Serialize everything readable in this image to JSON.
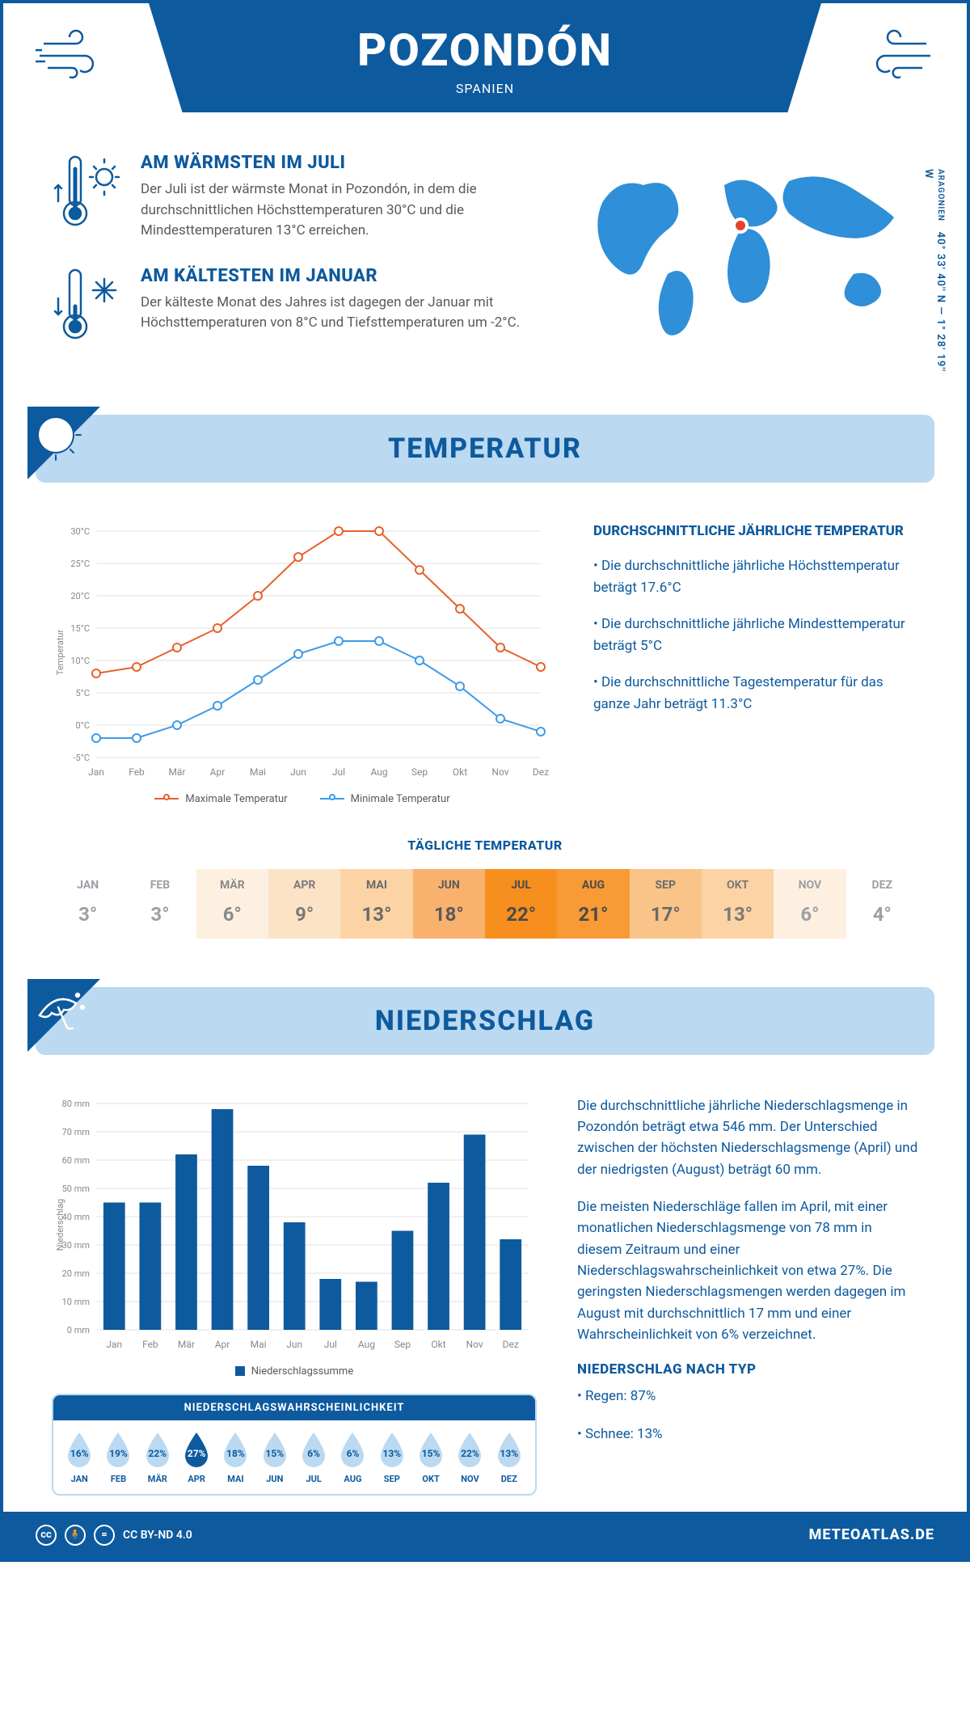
{
  "header": {
    "place": "POZONDÓN",
    "country": "SPANIEN"
  },
  "coords": {
    "region": "ARAGONIEN",
    "lat": "40° 33' 40'' N",
    "lon": "1° 28' 19'' W"
  },
  "warmest": {
    "title": "AM WÄRMSTEN IM JULI",
    "text": "Der Juli ist der wärmste Monat in Pozondón, in dem die durchschnittlichen Höchsttemperaturen 30°C und die Mindesttemperaturen 13°C erreichen."
  },
  "coldest": {
    "title": "AM KÄLTESTEN IM JANUAR",
    "text": "Der kälteste Monat des Jahres ist dagegen der Januar mit Höchsttemperaturen von 8°C und Tiefsttemperaturen um -2°C."
  },
  "temp_section": {
    "title": "TEMPERATUR",
    "chart": {
      "type": "line",
      "months": [
        "Jan",
        "Feb",
        "Mär",
        "Apr",
        "Mai",
        "Jun",
        "Jul",
        "Aug",
        "Sep",
        "Okt",
        "Nov",
        "Dez"
      ],
      "max_series": {
        "label": "Maximale Temperatur",
        "color": "#e8612c",
        "values": [
          8,
          9,
          12,
          15,
          20,
          26,
          30,
          30,
          24,
          18,
          12,
          9
        ]
      },
      "min_series": {
        "label": "Minimale Temperatur",
        "color": "#3d9be9",
        "values": [
          -2,
          -2,
          0,
          3,
          7,
          11,
          13,
          13,
          10,
          6,
          1,
          -1
        ]
      },
      "y_label": "Temperatur",
      "ylim": [
        -5,
        30
      ],
      "ytick_step": 5,
      "tick_suffix": "°C",
      "grid_color": "#e0e0e0",
      "background": "#ffffff",
      "line_width": 2,
      "marker_size": 5
    },
    "avg_title": "DURCHSCHNITTLICHE JÄHRLICHE TEMPERATUR",
    "bullet1": "• Die durchschnittliche jährliche Höchsttemperatur beträgt 17.6°C",
    "bullet2": "• Die durchschnittliche jährliche Mindesttemperatur beträgt 5°C",
    "bullet3": "• Die durchschnittliche Tagestemperatur für das ganze Jahr beträgt 11.3°C"
  },
  "daily_temp": {
    "title": "TÄGLICHE TEMPERATUR",
    "months": [
      "JAN",
      "FEB",
      "MÄR",
      "APR",
      "MAI",
      "JUN",
      "JUL",
      "AUG",
      "SEP",
      "OKT",
      "NOV",
      "DEZ"
    ],
    "values": [
      "3°",
      "3°",
      "6°",
      "9°",
      "13°",
      "18°",
      "22°",
      "21°",
      "17°",
      "13°",
      "6°",
      "4°"
    ],
    "bg_colors": [
      "#ffffff",
      "#ffffff",
      "#fdf0e0",
      "#fce3c5",
      "#fbd3a4",
      "#f9b16e",
      "#f78f1e",
      "#f89a35",
      "#fac488",
      "#fbd3a4",
      "#fdf0e0",
      "#ffffff"
    ],
    "text_colors": [
      "#9aa0a6",
      "#9aa0a6",
      "#8a8a8a",
      "#7a7a7a",
      "#6a6a6a",
      "#5a5a5a",
      "#4a4a4a",
      "#4a4a4a",
      "#6a6a6a",
      "#7a7a7a",
      "#9aa0a6",
      "#9aa0a6"
    ]
  },
  "precip_section": {
    "title": "NIEDERSCHLAG",
    "chart": {
      "type": "bar",
      "months": [
        "Jan",
        "Feb",
        "Mär",
        "Apr",
        "Mai",
        "Jun",
        "Jul",
        "Aug",
        "Sep",
        "Okt",
        "Nov",
        "Dez"
      ],
      "values": [
        45,
        45,
        62,
        78,
        58,
        38,
        18,
        17,
        35,
        52,
        69,
        32
      ],
      "y_label": "Niederschlag",
      "ylim": [
        0,
        80
      ],
      "ytick_step": 10,
      "tick_suffix": " mm",
      "bar_color": "#0d5a9e",
      "grid_color": "#e0e0e0",
      "legend_label": "Niederschlagssumme"
    },
    "para1": "Die durchschnittliche jährliche Niederschlagsmenge in Pozondón beträgt etwa 546 mm. Der Unterschied zwischen der höchsten Niederschlagsmenge (April) und der niedrigsten (August) beträgt 60 mm.",
    "para2": "Die meisten Niederschläge fallen im April, mit einer monatlichen Niederschlagsmenge von 78 mm in diesem Zeitraum und einer Niederschlagswahrscheinlichkeit von etwa 27%. Die geringsten Niederschlagsmengen werden dagegen im August mit durchschnittlich 17 mm und einer Wahrscheinlichkeit von 6% verzeichnet.",
    "by_type_title": "NIEDERSCHLAG NACH TYP",
    "rain": "• Regen: 87%",
    "snow": "• Schnee: 13%"
  },
  "prob": {
    "title": "NIEDERSCHLAGSWAHRSCHEINLICHKEIT",
    "months": [
      "JAN",
      "FEB",
      "MÄR",
      "APR",
      "MAI",
      "JUN",
      "JUL",
      "AUG",
      "SEP",
      "OKT",
      "NOV",
      "DEZ"
    ],
    "values": [
      "16%",
      "19%",
      "22%",
      "27%",
      "18%",
      "15%",
      "6%",
      "6%",
      "13%",
      "15%",
      "22%",
      "13%"
    ],
    "highlight_index": 3,
    "drop_fill": "#bbd9f0",
    "drop_highlight": "#0d5a9e",
    "text_color": "#0d5a9e",
    "text_highlight": "#ffffff"
  },
  "footer": {
    "license": "CC BY-ND 4.0",
    "site": "METEOATLAS.DE"
  },
  "colors": {
    "primary": "#0d5a9e",
    "light_blue": "#bbd9f0",
    "map_blue": "#2f8fd8",
    "marker": "#e8422c"
  }
}
